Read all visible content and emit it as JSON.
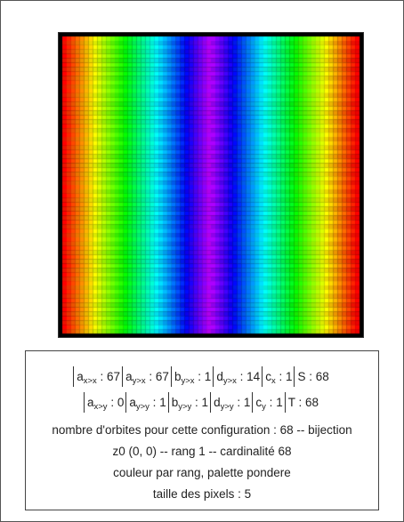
{
  "image": {
    "columns": 68,
    "rows": 68,
    "coloring": "rainbow"
  },
  "parameters": {
    "row1": [
      {
        "sym": "a",
        "sub": "x>x",
        "sep": " : ",
        "value": "67"
      },
      {
        "sym": "a",
        "sub": "y>x",
        "sep": " : ",
        "value": "67"
      },
      {
        "sym": "b",
        "sub": "y>x",
        "sep": " : ",
        "value": "1"
      },
      {
        "sym": "d",
        "sub": "y>x",
        "sep": " : ",
        "value": "14"
      },
      {
        "sym": "c",
        "sub": "x",
        "sep": " : ",
        "value": "1"
      },
      {
        "sym": "S",
        "sub": "",
        "sep": " : ",
        "value": "68"
      }
    ],
    "row2": [
      {
        "sym": "a",
        "sub": "x>y",
        "sep": " : ",
        "value": "0"
      },
      {
        "sym": "a",
        "sub": "y>y",
        "sep": " : ",
        "value": "1"
      },
      {
        "sym": "b",
        "sub": "y>y",
        "sep": " : ",
        "value": "1"
      },
      {
        "sym": "d",
        "sub": "y>y",
        "sep": " : ",
        "value": "1"
      },
      {
        "sym": "c",
        "sub": "y",
        "sep": " : ",
        "value": "1"
      },
      {
        "sym": "T",
        "sub": "",
        "sep": " : ",
        "value": "68"
      }
    ]
  },
  "info": {
    "orbits": "nombre d'orbites pour cette configuration : 68 -- bijection",
    "z0": "z0 (0, 0) -- rang 1 -- cardinalité 68",
    "coloring": "couleur par rang, palette pondere",
    "pixel_size": "taille des pixels : 5"
  }
}
